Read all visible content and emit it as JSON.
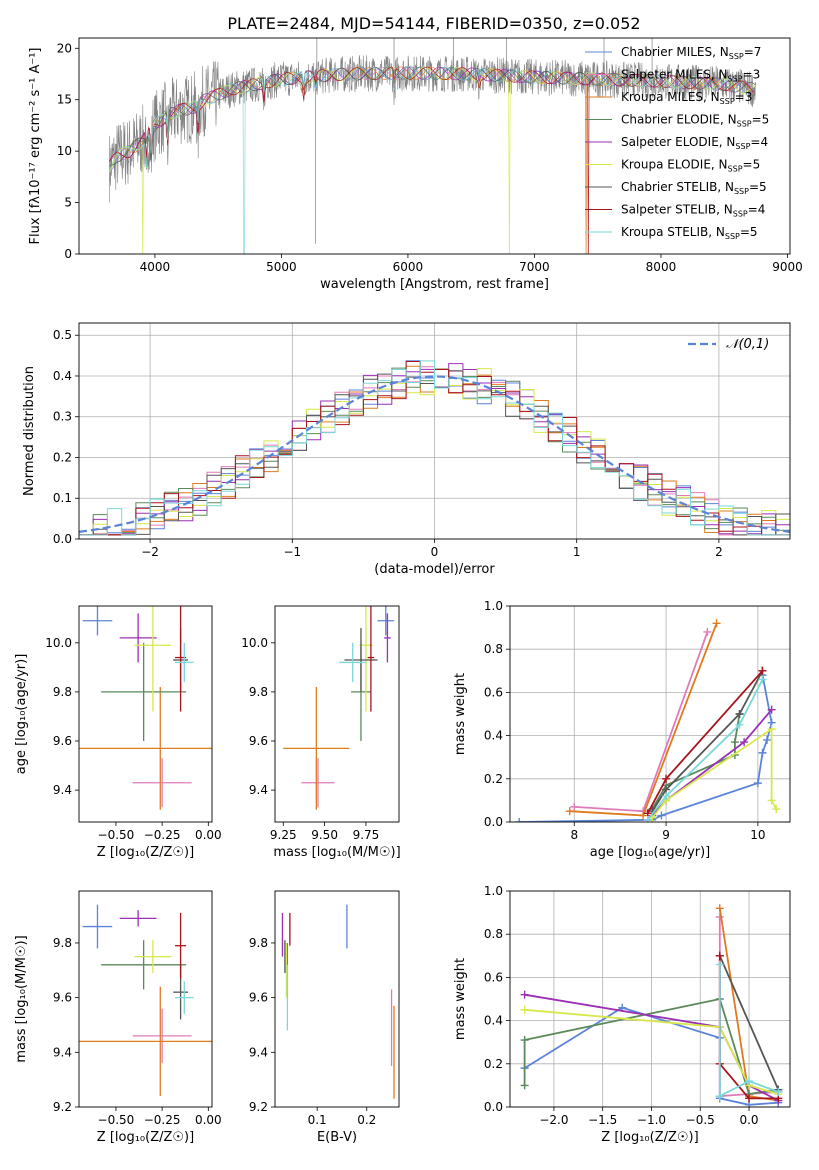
{
  "title": "PLATE=2484, MJD=54144, FIBERID=0350, z=0.052",
  "colors": {
    "Chabrier MILES": "#5b84d9",
    "Salpeter MILES": "#e07bb8",
    "Kroupa MILES": "#e07a1f",
    "Chabrier ELODIE": "#5a8a5a",
    "Salpeter ELODIE": "#9b2fb5",
    "Kroupa ELODIE": "#d6e84a",
    "Chabrier STELIB": "#555555",
    "Salpeter STELIB": "#a8141e",
    "Kroupa STELIB": "#7ad7da"
  },
  "legend_spectrum": [
    {
      "model": "Chabrier MILES",
      "label": "Chabrier MILES, N",
      "sub": "SSP",
      "eq": "=7"
    },
    {
      "model": "Salpeter MILES",
      "label": "Salpeter MILES, N",
      "sub": "SSP",
      "eq": "=3"
    },
    {
      "model": "Kroupa MILES",
      "label": "Kroupa MILES, N",
      "sub": "SSP",
      "eq": "=3"
    },
    {
      "model": "Chabrier ELODIE",
      "label": "Chabrier ELODIE, N",
      "sub": "SSP",
      "eq": "=5"
    },
    {
      "model": "Salpeter ELODIE",
      "label": "Salpeter ELODIE, N",
      "sub": "SSP",
      "eq": "=4"
    },
    {
      "model": "Kroupa ELODIE",
      "label": "Kroupa ELODIE, N",
      "sub": "SSP",
      "eq": "=5"
    },
    {
      "model": "Chabrier STELIB",
      "label": "Chabrier STELIB, N",
      "sub": "SSP",
      "eq": "=5"
    },
    {
      "model": "Salpeter STELIB",
      "label": "Salpeter STELIB, N",
      "sub": "SSP",
      "eq": "=4"
    },
    {
      "model": "Kroupa STELIB",
      "label": "Kroupa STELIB, N",
      "sub": "SSP",
      "eq": "=5"
    }
  ],
  "chart_data": [
    {
      "id": "spectrum",
      "type": "line",
      "xlabel": "wavelength [Angstrom, rest frame]",
      "ylabel": "Flux [fλ10⁻¹⁷ erg cm⁻² s⁻¹ A⁻¹]",
      "xlim": [
        3400,
        9020
      ],
      "ylim": [
        0,
        21
      ],
      "xticks": [
        4000,
        5000,
        6000,
        7000,
        8000,
        9000
      ],
      "yticks": [
        0,
        5,
        10,
        15,
        20
      ],
      "data_series": {
        "name": "data",
        "color": "#808080",
        "xrange": [
          3640,
          8750
        ]
      },
      "model_continuum": {
        "x": [
          3640,
          3700,
          3800,
          3900,
          4000,
          4100,
          4200,
          4300,
          4400,
          4500,
          4600,
          4800,
          5000,
          5200,
          5500,
          6000,
          6500,
          7000,
          7500,
          8000,
          8500,
          8750
        ],
        "y": [
          8.5,
          9.5,
          10.0,
          11.0,
          12.5,
          13.5,
          14.0,
          14.2,
          15.0,
          15.5,
          16.0,
          16.5,
          17.0,
          17.2,
          17.5,
          17.6,
          17.5,
          17.2,
          17.0,
          16.8,
          16.5,
          16.0
        ]
      },
      "model_drops": [
        {
          "model": "Kroupa ELODIE",
          "x": 3905
        },
        {
          "model": "Kroupa STELIB",
          "x": 4705
        },
        {
          "model": "Kroupa ELODIE",
          "x": 6800
        },
        {
          "model": "Kroupa MILES",
          "x": 7410
        },
        {
          "model": "Salpeter STELIB",
          "x": 7425
        }
      ]
    },
    {
      "id": "residuals",
      "type": "histogram",
      "xlabel": "(data-model)/error",
      "ylabel": "Normed distribution",
      "xlim": [
        -2.5,
        2.5
      ],
      "ylim": [
        0,
        0.53
      ],
      "xticks": [
        -2,
        -1,
        0,
        1,
        2
      ],
      "yticks": [
        0.0,
        0.1,
        0.2,
        0.3,
        0.4,
        0.5
      ],
      "bin_width": 0.1,
      "reference": {
        "name": "𝒩(0,1)",
        "mu": 0,
        "sigma": 1,
        "color": "#5b84d9"
      },
      "grid": true,
      "legend": "top-right"
    },
    {
      "id": "age_vs_Z",
      "type": "errorbar",
      "xlabel": "Z [log₁₀(Z/Z☉)]",
      "ylabel": "age  [log₁₀(age/yr)]",
      "xlim": [
        -0.7,
        0.02
      ],
      "ylim": [
        9.27,
        10.15
      ],
      "xticks": [
        -0.5,
        -0.25,
        0.0
      ],
      "yticks": [
        9.4,
        9.6,
        9.8,
        10.0
      ],
      "points": [
        {
          "model": "Chabrier MILES",
          "x": -0.6,
          "xerr": 0.08,
          "y": 10.09,
          "yerr": 0.06
        },
        {
          "model": "Salpeter MILES",
          "x": -0.25,
          "xerr": 0.16,
          "y": 9.43,
          "yerr": 0.1
        },
        {
          "model": "Kroupa MILES",
          "x": -0.26,
          "xerr": 0.44,
          "y": 9.57,
          "yerr": 0.25
        },
        {
          "model": "Chabrier ELODIE",
          "x": -0.35,
          "xerr": 0.23,
          "y": 9.8,
          "yerr": 0.2
        },
        {
          "model": "Salpeter ELODIE",
          "x": -0.38,
          "xerr": 0.1,
          "y": 10.02,
          "yerr": 0.1
        },
        {
          "model": "Kroupa ELODIE",
          "x": -0.3,
          "xerr": 0.1,
          "y": 9.99,
          "yerr": 0.27
        },
        {
          "model": "Chabrier STELIB",
          "x": -0.15,
          "xerr": 0.04,
          "y": 9.93,
          "yerr": 0.13
        },
        {
          "model": "Salpeter STELIB",
          "x": -0.15,
          "xerr": 0.03,
          "y": 9.94,
          "yerr": 0.22
        },
        {
          "model": "Kroupa STELIB",
          "x": -0.13,
          "xerr": 0.05,
          "y": 9.92,
          "yerr": 0.08
        }
      ]
    },
    {
      "id": "age_vs_mass",
      "type": "errorbar",
      "xlabel": "mass [log₁₀(M/M☉)]",
      "xlim": [
        9.2,
        9.95
      ],
      "ylim": [
        9.27,
        10.15
      ],
      "xticks": [
        9.25,
        9.5,
        9.75
      ],
      "yticks": [
        9.4,
        9.6,
        9.8,
        10.0
      ],
      "points": [
        {
          "model": "Chabrier MILES",
          "x": 9.87,
          "xerr": 0.05,
          "y": 10.09,
          "yerr": 0.06
        },
        {
          "model": "Salpeter MILES",
          "x": 9.46,
          "xerr": 0.1,
          "y": 9.43,
          "yerr": 0.1
        },
        {
          "model": "Kroupa MILES",
          "x": 9.45,
          "xerr": 0.2,
          "y": 9.57,
          "yerr": 0.25
        },
        {
          "model": "Chabrier ELODIE",
          "x": 9.72,
          "xerr": 0.06,
          "y": 9.8,
          "yerr": 0.2
        },
        {
          "model": "Salpeter ELODIE",
          "x": 9.88,
          "xerr": 0.02,
          "y": 10.02,
          "yerr": 0.1
        },
        {
          "model": "Kroupa ELODIE",
          "x": 9.75,
          "xerr": 0.04,
          "y": 9.99,
          "yerr": 0.27
        },
        {
          "model": "Chabrier STELIB",
          "x": 9.72,
          "xerr": 0.1,
          "y": 9.93,
          "yerr": 0.13
        },
        {
          "model": "Salpeter STELIB",
          "x": 9.78,
          "xerr": 0.02,
          "y": 9.94,
          "yerr": 0.22
        },
        {
          "model": "Kroupa STELIB",
          "x": 9.67,
          "xerr": 0.08,
          "y": 9.92,
          "yerr": 0.08
        }
      ]
    },
    {
      "id": "mass_weight_vs_age",
      "type": "line",
      "xlabel": "age  [log₁₀(age/yr)]",
      "ylabel": "mass weight",
      "xlim": [
        7.3,
        10.35
      ],
      "ylim": [
        0,
        1.0
      ],
      "xticks": [
        8,
        9,
        10
      ],
      "yticks": [
        0.0,
        0.2,
        0.4,
        0.6,
        0.8,
        1.0
      ],
      "grid": true,
      "series": [
        {
          "model": "Chabrier MILES",
          "x": [
            7.4,
            8.85,
            8.95,
            10.0,
            10.05,
            10.1,
            10.15,
            10.05
          ],
          "y": [
            0.0,
            0.01,
            0.03,
            0.18,
            0.32,
            0.38,
            0.46,
            0.68
          ]
        },
        {
          "model": "Salpeter MILES",
          "x": [
            8.0,
            8.75,
            9.45
          ],
          "y": [
            0.07,
            0.05,
            0.88
          ]
        },
        {
          "model": "Kroupa MILES",
          "x": [
            7.95,
            8.75,
            9.55
          ],
          "y": [
            0.05,
            0.03,
            0.92
          ]
        },
        {
          "model": "Chabrier ELODIE",
          "x": [
            8.85,
            9.0,
            9.75,
            9.75,
            9.8
          ],
          "y": [
            0.06,
            0.17,
            0.31,
            0.37,
            0.5
          ]
        },
        {
          "model": "Salpeter ELODIE",
          "x": [
            8.85,
            9.0,
            9.85,
            10.15
          ],
          "y": [
            0.03,
            0.1,
            0.37,
            0.52
          ]
        },
        {
          "model": "Kroupa ELODIE",
          "x": [
            8.85,
            9.0,
            10.15,
            10.15,
            10.2
          ],
          "y": [
            0.02,
            0.1,
            0.43,
            0.1,
            0.06
          ]
        },
        {
          "model": "Chabrier STELIB",
          "x": [
            8.85,
            9.0,
            9.8,
            10.05
          ],
          "y": [
            0.05,
            0.15,
            0.5,
            0.7
          ]
        },
        {
          "model": "Salpeter STELIB",
          "x": [
            8.8,
            9.0,
            10.05
          ],
          "y": [
            0.04,
            0.2,
            0.7
          ]
        },
        {
          "model": "Kroupa STELIB",
          "x": [
            8.8,
            9.0,
            9.8,
            10.05
          ],
          "y": [
            0.01,
            0.12,
            0.45,
            0.66
          ]
        }
      ]
    },
    {
      "id": "mass_vs_Z",
      "type": "errorbar",
      "xlabel": "Z [log₁₀(Z/Z☉)]",
      "ylabel": "mass [log₁₀(M/M☉)]",
      "xlim": [
        -0.7,
        0.02
      ],
      "ylim": [
        9.2,
        9.99
      ],
      "xticks": [
        -0.5,
        -0.25,
        0.0
      ],
      "yticks": [
        9.2,
        9.4,
        9.6,
        9.8
      ],
      "points": [
        {
          "model": "Chabrier MILES",
          "x": -0.6,
          "xerr": 0.08,
          "y": 9.86,
          "yerr": 0.08
        },
        {
          "model": "Salpeter MILES",
          "x": -0.25,
          "xerr": 0.16,
          "y": 9.46,
          "yerr": 0.1
        },
        {
          "model": "Kroupa MILES",
          "x": -0.26,
          "xerr": 0.44,
          "y": 9.44,
          "yerr": 0.2
        },
        {
          "model": "Chabrier ELODIE",
          "x": -0.35,
          "xerr": 0.23,
          "y": 9.72,
          "yerr": 0.09
        },
        {
          "model": "Salpeter ELODIE",
          "x": -0.38,
          "xerr": 0.1,
          "y": 9.89,
          "yerr": 0.03
        },
        {
          "model": "Kroupa ELODIE",
          "x": -0.3,
          "xerr": 0.1,
          "y": 9.75,
          "yerr": 0.06
        },
        {
          "model": "Chabrier STELIB",
          "x": -0.15,
          "xerr": 0.04,
          "y": 9.62,
          "yerr": 0.1
        },
        {
          "model": "Salpeter STELIB",
          "x": -0.15,
          "xerr": 0.03,
          "y": 9.79,
          "yerr": 0.12
        },
        {
          "model": "Kroupa STELIB",
          "x": -0.13,
          "xerr": 0.05,
          "y": 9.6,
          "yerr": 0.06
        }
      ]
    },
    {
      "id": "mass_vs_ebv",
      "type": "errorbar",
      "xlabel": "E(B-V)",
      "xlim": [
        0.015,
        0.265
      ],
      "ylim": [
        9.2,
        9.99
      ],
      "xticks": [
        0.1,
        0.2
      ],
      "yticks": [
        9.2,
        9.4,
        9.6,
        9.8
      ],
      "points": [
        {
          "model": "Chabrier MILES",
          "x": 0.16,
          "y": 9.86,
          "yerr": 0.08
        },
        {
          "model": "Salpeter MILES",
          "x": 0.25,
          "y": 9.49,
          "yerr": 0.14
        },
        {
          "model": "Kroupa MILES",
          "x": 0.255,
          "y": 9.4,
          "yerr": 0.17
        },
        {
          "model": "Chabrier ELODIE",
          "x": 0.04,
          "y": 9.7,
          "yerr": 0.1
        },
        {
          "model": "Salpeter ELODIE",
          "x": 0.03,
          "y": 9.83,
          "yerr": 0.08
        },
        {
          "model": "Kroupa ELODIE",
          "x": 0.038,
          "y": 9.7,
          "yerr": 0.1
        },
        {
          "model": "Chabrier STELIB",
          "x": 0.035,
          "y": 9.75,
          "yerr": 0.06
        },
        {
          "model": "Salpeter STELIB",
          "x": 0.045,
          "y": 9.85,
          "yerr": 0.06
        },
        {
          "model": "Kroupa STELIB",
          "x": 0.04,
          "y": 9.6,
          "yerr": 0.12
        }
      ]
    },
    {
      "id": "mass_weight_vs_Z",
      "type": "line",
      "xlabel": "Z [log₁₀(Z/Z☉)]",
      "ylabel": "mass weight",
      "xlim": [
        -2.45,
        0.42
      ],
      "ylim": [
        0,
        1.0
      ],
      "xticks": [
        -2.0,
        -1.5,
        -1.0,
        -0.5,
        0.0
      ],
      "yticks": [
        0.0,
        0.2,
        0.4,
        0.6,
        0.8,
        1.0
      ],
      "grid": true,
      "series": [
        {
          "model": "Chabrier MILES",
          "x": [
            -2.3,
            -1.3,
            -0.3,
            -0.3,
            0.0,
            0.3
          ],
          "y": [
            0.18,
            0.46,
            0.32,
            0.04,
            0.01,
            0.02
          ]
        },
        {
          "model": "Salpeter MILES",
          "x": [
            -0.3,
            -0.3,
            0.3
          ],
          "y": [
            0.88,
            0.05,
            0.07
          ]
        },
        {
          "model": "Kroupa MILES",
          "x": [
            -0.3,
            0.0,
            0.3
          ],
          "y": [
            0.92,
            0.05,
            0.03
          ]
        },
        {
          "model": "Chabrier ELODIE",
          "x": [
            -2.3,
            -2.3,
            -0.3,
            0.0,
            0.3
          ],
          "y": [
            0.1,
            0.31,
            0.5,
            0.06,
            0.08
          ]
        },
        {
          "model": "Salpeter ELODIE",
          "x": [
            -2.3,
            -0.3,
            0.0,
            0.3
          ],
          "y": [
            0.52,
            0.37,
            0.1,
            0.03
          ]
        },
        {
          "model": "Kroupa ELODIE",
          "x": [
            -2.3,
            -0.3,
            0.0,
            0.3
          ],
          "y": [
            0.45,
            0.37,
            0.1,
            0.06
          ]
        },
        {
          "model": "Chabrier STELIB",
          "x": [
            -0.3,
            0.3
          ],
          "y": [
            0.7,
            0.08
          ]
        },
        {
          "model": "Salpeter STELIB",
          "x": [
            -0.3,
            -0.3,
            0.0,
            0.3
          ],
          "y": [
            0.7,
            0.2,
            0.04,
            0.04
          ]
        },
        {
          "model": "Kroupa STELIB",
          "x": [
            -0.3,
            -0.3,
            0.0,
            0.3
          ],
          "y": [
            0.66,
            0.05,
            0.12,
            0.07
          ]
        }
      ]
    }
  ]
}
